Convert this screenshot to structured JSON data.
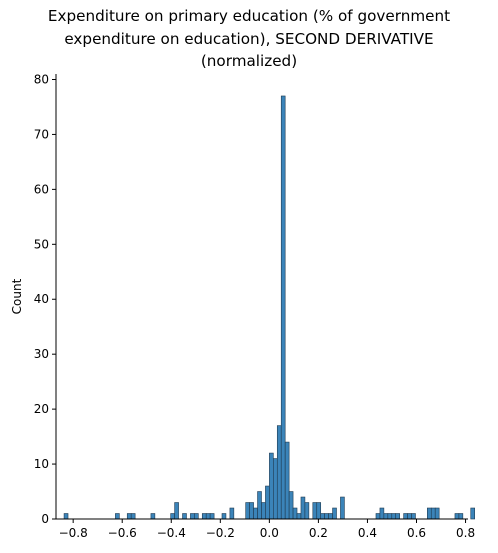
{
  "chart_data": {
    "type": "bar",
    "title_lines": [
      "Expenditure on primary education (% of government",
      "expenditure on education), SECOND DERIVATIVE",
      "(normalized)"
    ],
    "xlabel": "",
    "ylabel": "Count",
    "xlim": [
      -0.87,
      0.81
    ],
    "ylim": [
      0,
      81
    ],
    "xticks": [
      -0.8,
      -0.6,
      -0.4,
      -0.2,
      0.0,
      0.2,
      0.4,
      0.6,
      0.8
    ],
    "xtick_labels": [
      "−0.8",
      "−0.6",
      "−0.4",
      "−0.2",
      "0.0",
      "0.2",
      "0.4",
      "0.6",
      "0.8"
    ],
    "yticks": [
      0,
      10,
      20,
      30,
      40,
      50,
      60,
      70,
      80
    ],
    "ytick_labels": [
      "0",
      "10",
      "20",
      "30",
      "40",
      "50",
      "60",
      "70",
      "80"
    ],
    "bin_start": -0.8371,
    "bin_width": 0.0161,
    "counts": [
      1,
      0,
      0,
      0,
      0,
      0,
      0,
      0,
      0,
      0,
      0,
      0,
      0,
      1,
      0,
      0,
      1,
      1,
      0,
      0,
      0,
      0,
      1,
      0,
      0,
      0,
      0,
      1,
      3,
      0,
      1,
      0,
      1,
      1,
      0,
      1,
      1,
      1,
      0,
      0,
      1,
      0,
      2,
      0,
      0,
      0,
      3,
      3,
      2,
      5,
      3,
      6,
      12,
      11,
      17,
      77,
      14,
      5,
      2,
      1,
      4,
      3,
      0,
      3,
      3,
      1,
      1,
      1,
      2,
      0,
      4,
      0,
      0,
      0,
      0,
      0,
      0,
      0,
      0,
      1,
      2,
      1,
      1,
      1,
      1,
      0,
      1,
      1,
      1,
      0,
      0,
      0,
      2,
      2,
      2,
      0,
      0,
      0,
      0,
      1,
      1,
      0,
      0,
      2
    ],
    "bar_color": "#3b84b9",
    "bar_edge_color": "#1f3a50",
    "grid": false,
    "legend": false
  }
}
